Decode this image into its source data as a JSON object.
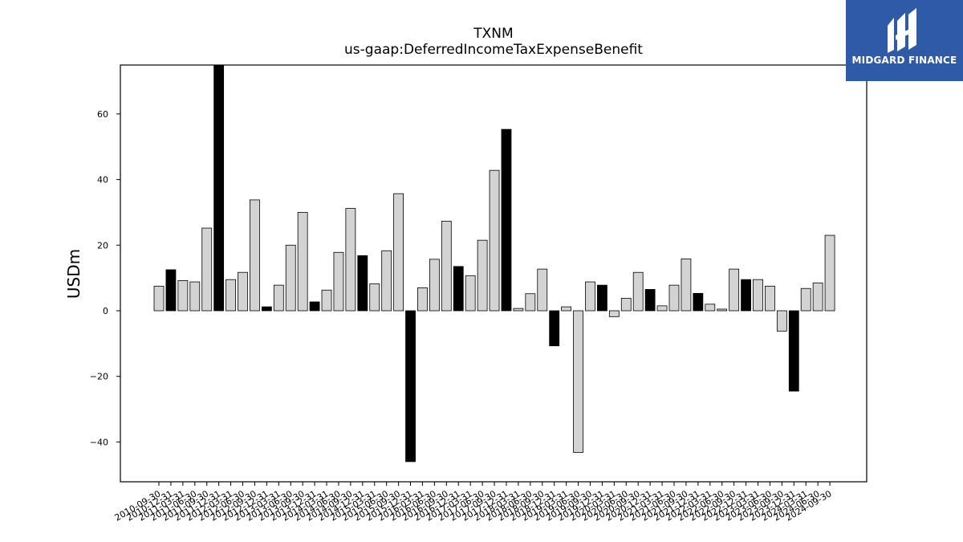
{
  "chart_data": {
    "type": "bar",
    "title": "TXNM",
    "subtitle": "us-gaap:DeferredIncomeTaxExpenseBenefit",
    "ylabel": "USDm",
    "xlabel": "",
    "ylim": [
      -52,
      75
    ],
    "yticks": [
      -40,
      -20,
      0,
      20,
      40,
      60
    ],
    "ytick_labels": [
      "−40",
      "−20",
      "0",
      "20",
      "40",
      "60"
    ],
    "grid": false,
    "colors": {
      "quarter": "#d3d3d3",
      "annual": "#000000",
      "edge": "#000000"
    },
    "categories": [
      "2010-09-30",
      "2010-12-31",
      "2011-03-31",
      "2011-06-30",
      "2011-09-30",
      "2011-12-31",
      "2012-03-31",
      "2012-06-30",
      "2012-09-30",
      "2012-12-31",
      "2013-03-31",
      "2013-06-30",
      "2013-09-30",
      "2013-12-31",
      "2014-03-31",
      "2014-06-30",
      "2014-09-30",
      "2014-12-31",
      "2015-03-31",
      "2015-06-30",
      "2015-09-30",
      "2015-12-31",
      "2016-03-31",
      "2016-06-30",
      "2016-09-30",
      "2016-12-31",
      "2017-03-31",
      "2017-06-30",
      "2017-09-30",
      "2017-12-31",
      "2018-03-31",
      "2018-06-30",
      "2018-09-30",
      "2018-12-31",
      "2019-03-31",
      "2019-06-30",
      "2019-09-30",
      "2019-12-31",
      "2020-03-31",
      "2020-06-30",
      "2020-09-30",
      "2020-12-31",
      "2021-03-31",
      "2021-06-30",
      "2021-09-30",
      "2021-12-31",
      "2022-03-31",
      "2022-06-30",
      "2022-09-30",
      "2022-12-31",
      "2023-03-31",
      "2023-06-30",
      "2023-09-30",
      "2023-12-31",
      "2024-03-31",
      "2024-06-30",
      "2024-09-30"
    ],
    "values": [
      7.5,
      12.5,
      9.2,
      8.8,
      25.2,
      76.0,
      9.5,
      11.7,
      33.8,
      1.2,
      7.8,
      20.0,
      30.0,
      2.7,
      6.3,
      17.8,
      31.2,
      16.8,
      8.2,
      18.3,
      35.7,
      -46.0,
      7.0,
      15.7,
      27.3,
      13.5,
      10.7,
      21.5,
      42.8,
      55.3,
      0.7,
      5.2,
      12.7,
      -10.7,
      1.2,
      -43.2,
      8.8,
      7.8,
      -1.8,
      3.8,
      11.7,
      6.5,
      1.5,
      7.8,
      15.8,
      5.3,
      2.0,
      0.5,
      12.7,
      9.5,
      9.5,
      7.5,
      -6.2,
      -24.5,
      6.8,
      8.5,
      23.0
    ],
    "annual": [
      false,
      true,
      false,
      false,
      false,
      true,
      false,
      false,
      false,
      true,
      false,
      false,
      false,
      true,
      false,
      false,
      false,
      true,
      false,
      false,
      false,
      true,
      false,
      false,
      false,
      true,
      false,
      false,
      false,
      true,
      false,
      false,
      false,
      true,
      false,
      false,
      false,
      true,
      false,
      false,
      false,
      true,
      false,
      false,
      false,
      true,
      false,
      false,
      false,
      true,
      false,
      false,
      false,
      true,
      false,
      false,
      false
    ]
  },
  "logo": {
    "text": "MIDGARD FINANCE",
    "icon": "midgard-logo-icon",
    "background": "#2f5aa8"
  }
}
